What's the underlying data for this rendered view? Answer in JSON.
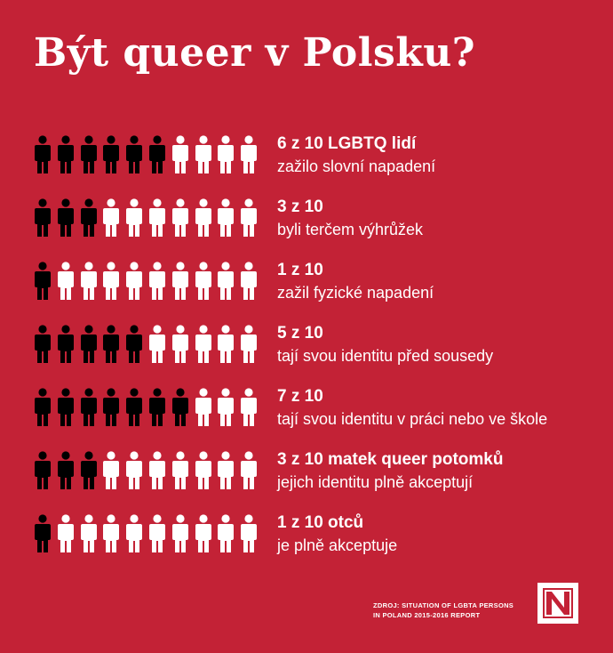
{
  "title": "Být queer v Polsku?",
  "colors": {
    "background": "#c32236",
    "filled": "#000000",
    "empty": "#ffffff"
  },
  "rows": [
    {
      "stat": "6 z 10 LGBTQ lidí",
      "desc": "zažilo slovní napadení",
      "filled": 6,
      "total": 10
    },
    {
      "stat": "3 z 10",
      "desc": "byli terčem výhrůžek",
      "filled": 3,
      "total": 10
    },
    {
      "stat": "1 z 10",
      "desc": "zažil fyzické napadení",
      "filled": 1,
      "total": 10
    },
    {
      "stat": "5 z 10",
      "desc": "tají svou identitu před sousedy",
      "filled": 5,
      "total": 10
    },
    {
      "stat": "7 z 10",
      "desc": "tají svou identitu v práci nebo ve škole",
      "filled": 7,
      "total": 10
    },
    {
      "stat": "3 z 10 matek queer potomků",
      "desc": "jejich identitu plně akceptují",
      "filled": 3,
      "total": 10
    },
    {
      "stat": "1 z 10 otců",
      "desc": "je plně akceptuje",
      "filled": 1,
      "total": 10
    }
  ],
  "source": {
    "line1": "ZDROJ: SITUATION OF LGBTA PERSONS",
    "line2": "IN POLAND 2015-2016 REPORT"
  },
  "logo_icon": "n-logo-icon",
  "person_icon": "person-icon"
}
